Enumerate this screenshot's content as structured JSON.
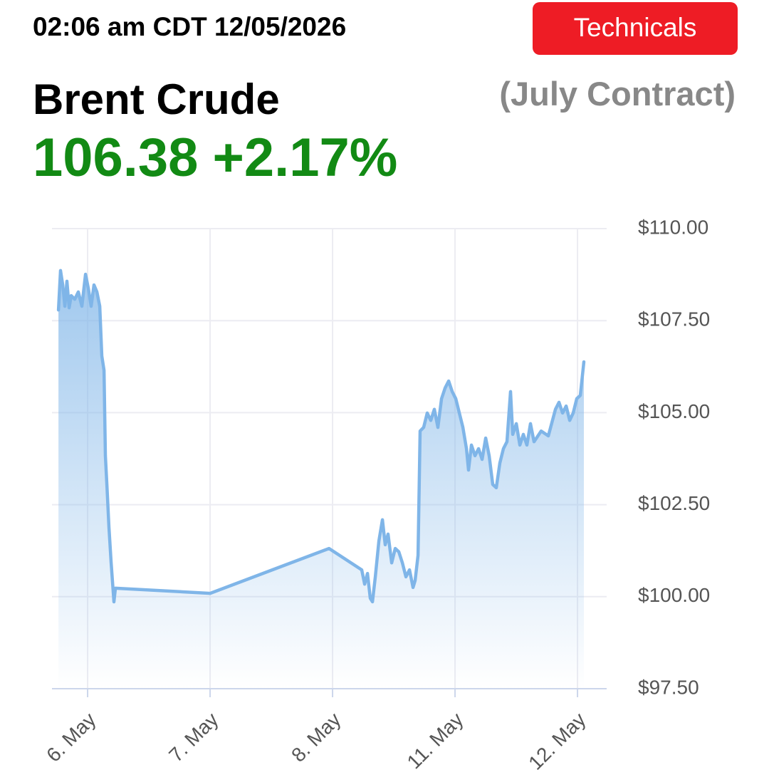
{
  "header": {
    "timestamp": "02:06 am CDT 12/05/2026",
    "button": "Technicals",
    "instrument": "Brent Crude",
    "contract": "(July Contract)",
    "price": "106.38",
    "change": "+2.17%"
  },
  "chart_data": {
    "type": "line",
    "grid": true,
    "x": [
      -0.238,
      -0.221,
      -0.203,
      -0.186,
      -0.169,
      -0.151,
      -0.134,
      -0.105,
      -0.076,
      -0.047,
      -0.017,
      0.006,
      0.029,
      0.052,
      0.076,
      0.099,
      0.116,
      0.134,
      0.145,
      0.157,
      0.174,
      0.192,
      0.215,
      0.227,
      1.0,
      1.971,
      2.238,
      2.262,
      2.285,
      2.308,
      2.326,
      2.349,
      2.378,
      2.407,
      2.43,
      2.453,
      2.483,
      2.512,
      2.541,
      2.57,
      2.599,
      2.628,
      2.657,
      2.674,
      2.698,
      2.715,
      2.744,
      2.773,
      2.802,
      2.831,
      2.86,
      2.89,
      2.919,
      2.948,
      2.977,
      3.006,
      3.035,
      3.064,
      3.093,
      3.11,
      3.134,
      3.163,
      3.192,
      3.221,
      3.25,
      3.279,
      3.308,
      3.337,
      3.366,
      3.395,
      3.424,
      3.453,
      3.471,
      3.5,
      3.529,
      3.558,
      3.587,
      3.616,
      3.645,
      3.703,
      3.762,
      3.82,
      3.849,
      3.878,
      3.907,
      3.936,
      3.965,
      3.994,
      4.023,
      4.052
    ],
    "series": [
      {
        "color": "#7fb5e8",
        "values": [
          107.79,
          108.86,
          108.47,
          107.89,
          108.57,
          107.85,
          108.18,
          108.08,
          108.28,
          107.89,
          108.76,
          108.37,
          107.89,
          108.47,
          108.28,
          107.89,
          106.54,
          106.15,
          103.83,
          103.05,
          101.89,
          100.92,
          99.86,
          100.23,
          100.09,
          101.31,
          100.73,
          100.34,
          100.63,
          99.96,
          99.86,
          100.54,
          101.51,
          102.09,
          101.41,
          101.7,
          100.92,
          101.31,
          101.22,
          100.92,
          100.54,
          100.73,
          100.25,
          100.44,
          101.12,
          104.5,
          104.6,
          104.99,
          104.79,
          105.09,
          104.6,
          105.38,
          105.67,
          105.86,
          105.57,
          105.38,
          104.99,
          104.6,
          104.02,
          103.44,
          104.12,
          103.83,
          104.02,
          103.73,
          104.31,
          103.83,
          103.05,
          102.96,
          103.63,
          104.02,
          104.21,
          105.57,
          104.41,
          104.7,
          104.12,
          104.41,
          104.12,
          104.7,
          104.21,
          104.5,
          104.37,
          105.09,
          105.28,
          104.99,
          105.18,
          104.79,
          104.99,
          105.38,
          105.47,
          106.38
        ]
      }
    ],
    "xlim": [
      -0.291,
      4.238
    ],
    "xticks": [
      {
        "value": 0,
        "label": "6. May"
      },
      {
        "value": 1,
        "label": "7. May"
      },
      {
        "value": 2,
        "label": "8. May"
      },
      {
        "value": 3,
        "label": "11. May"
      },
      {
        "value": 4,
        "label": "12. May"
      }
    ],
    "ylim": [
      97.5,
      110
    ],
    "yticks": [
      {
        "value": 110,
        "label": "$110.00"
      },
      {
        "value": 107.5,
        "label": "$107.50"
      },
      {
        "value": 105,
        "label": "$105.00"
      },
      {
        "value": 102.5,
        "label": "$102.50"
      },
      {
        "value": 100,
        "label": "$100.00"
      },
      {
        "value": 97.5,
        "label": "$97.50"
      }
    ]
  }
}
